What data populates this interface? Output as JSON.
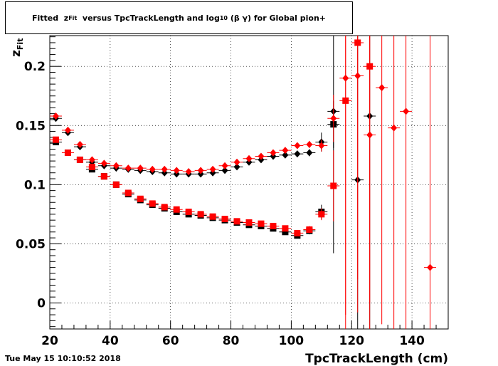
{
  "title": {
    "prefix": "Fitted  z",
    "prefix_sub": "Fit",
    "middle": "  versus TpcTrackLength and log",
    "middle_sub": "10",
    "suffix": " (β γ) for Global pion+"
  },
  "timestamp": "Tue May 15 10:10:52 2018",
  "chart_data": {
    "type": "scatter",
    "xlabel": "TpcTrackLength (cm)",
    "ylabel": "z",
    "ylabel_sub": "Fit",
    "xlim": [
      20,
      152
    ],
    "ylim": [
      -0.022,
      0.226
    ],
    "x_ticks": [
      20,
      40,
      60,
      80,
      100,
      120,
      140
    ],
    "y_ticks": [
      0,
      0.05,
      0.1,
      0.15,
      0.2
    ],
    "y_tick_labels": [
      "0",
      "0.05",
      "0.1",
      "0.15",
      "0.2"
    ],
    "grid": true,
    "colors": {
      "black": "#000000",
      "red": "#ff0000"
    },
    "series": [
      {
        "marker": "diamond",
        "color": "#000000",
        "points": [
          [
            22,
            0.156
          ],
          [
            26,
            0.144
          ],
          [
            30,
            0.132
          ],
          [
            34,
            0.119
          ],
          [
            38,
            0.116
          ],
          [
            42,
            0.114
          ],
          [
            46,
            0.113
          ],
          [
            50,
            0.112
          ],
          [
            54,
            0.111
          ],
          [
            58,
            0.11
          ],
          [
            62,
            0.109
          ],
          [
            66,
            0.109
          ],
          [
            70,
            0.109
          ],
          [
            74,
            0.11
          ],
          [
            78,
            0.112
          ],
          [
            82,
            0.115
          ],
          [
            86,
            0.119
          ],
          [
            90,
            0.121
          ],
          [
            94,
            0.124
          ],
          [
            98,
            0.125
          ],
          [
            102,
            0.126
          ],
          [
            106,
            0.127
          ],
          [
            110,
            0.136
          ],
          [
            114,
            0.162
          ],
          [
            122,
            0.104
          ],
          [
            126,
            0.158
          ]
        ],
        "yerr": [
          0.002,
          0.002,
          0.002,
          0.002,
          0.002,
          0.002,
          0.002,
          0.002,
          0.002,
          0.002,
          0.002,
          0.002,
          0.002,
          0.002,
          0.002,
          0.002,
          0.002,
          0.002,
          0.002,
          0.002,
          0.002,
          0.003,
          0.008,
          0.12,
          0.2,
          0.2
        ]
      },
      {
        "marker": "square",
        "color": "#000000",
        "points": [
          [
            22,
            0.136
          ],
          [
            26,
            0.127
          ],
          [
            30,
            0.121
          ],
          [
            34,
            0.113
          ],
          [
            38,
            0.107
          ],
          [
            42,
            0.1
          ],
          [
            46,
            0.092
          ],
          [
            50,
            0.087
          ],
          [
            54,
            0.083
          ],
          [
            58,
            0.08
          ],
          [
            62,
            0.077
          ],
          [
            66,
            0.075
          ],
          [
            70,
            0.074
          ],
          [
            74,
            0.072
          ],
          [
            78,
            0.07
          ],
          [
            82,
            0.068
          ],
          [
            86,
            0.066
          ],
          [
            90,
            0.065
          ],
          [
            94,
            0.063
          ],
          [
            98,
            0.06
          ],
          [
            102,
            0.057
          ],
          [
            106,
            0.061
          ],
          [
            110,
            0.077
          ],
          [
            114,
            0.151
          ]
        ],
        "yerr": [
          0.002,
          0.002,
          0.002,
          0.002,
          0.002,
          0.002,
          0.002,
          0.002,
          0.002,
          0.002,
          0.002,
          0.002,
          0.002,
          0.002,
          0.002,
          0.002,
          0.002,
          0.002,
          0.002,
          0.002,
          0.002,
          0.003,
          0.006,
          0.02
        ]
      },
      {
        "marker": "diamond",
        "color": "#ff0000",
        "points": [
          [
            22,
            0.158
          ],
          [
            26,
            0.146
          ],
          [
            30,
            0.134
          ],
          [
            34,
            0.121
          ],
          [
            38,
            0.118
          ],
          [
            42,
            0.116
          ],
          [
            46,
            0.114
          ],
          [
            50,
            0.114
          ],
          [
            54,
            0.113
          ],
          [
            58,
            0.113
          ],
          [
            62,
            0.112
          ],
          [
            66,
            0.111
          ],
          [
            70,
            0.112
          ],
          [
            74,
            0.113
          ],
          [
            78,
            0.116
          ],
          [
            82,
            0.119
          ],
          [
            86,
            0.122
          ],
          [
            90,
            0.124
          ],
          [
            94,
            0.127
          ],
          [
            98,
            0.129
          ],
          [
            102,
            0.133
          ],
          [
            106,
            0.134
          ],
          [
            110,
            0.133
          ],
          [
            114,
            0.156
          ],
          [
            118,
            0.19
          ],
          [
            122,
            0.192
          ],
          [
            126,
            0.142
          ],
          [
            130,
            0.182
          ],
          [
            134,
            0.148
          ],
          [
            138,
            0.162
          ],
          [
            146,
            0.03
          ]
        ],
        "yerr": [
          0.002,
          0.002,
          0.002,
          0.002,
          0.002,
          0.002,
          0.002,
          0.002,
          0.002,
          0.002,
          0.002,
          0.002,
          0.002,
          0.002,
          0.002,
          0.002,
          0.002,
          0.002,
          0.002,
          0.002,
          0.002,
          0.003,
          0.005,
          0.02,
          0.2,
          0.2,
          0.2,
          0.2,
          0.2,
          0.2,
          0.2
        ]
      },
      {
        "marker": "square",
        "color": "#ff0000",
        "points": [
          [
            22,
            0.138
          ],
          [
            26,
            0.127
          ],
          [
            30,
            0.121
          ],
          [
            34,
            0.115
          ],
          [
            38,
            0.107
          ],
          [
            42,
            0.1
          ],
          [
            46,
            0.093
          ],
          [
            50,
            0.088
          ],
          [
            54,
            0.084
          ],
          [
            58,
            0.081
          ],
          [
            62,
            0.079
          ],
          [
            66,
            0.077
          ],
          [
            70,
            0.075
          ],
          [
            74,
            0.073
          ],
          [
            78,
            0.071
          ],
          [
            82,
            0.069
          ],
          [
            86,
            0.068
          ],
          [
            90,
            0.067
          ],
          [
            94,
            0.065
          ],
          [
            98,
            0.063
          ],
          [
            102,
            0.059
          ],
          [
            106,
            0.062
          ],
          [
            110,
            0.075
          ],
          [
            114,
            0.099
          ],
          [
            118,
            0.171
          ],
          [
            122,
            0.22
          ],
          [
            126,
            0.2
          ]
        ],
        "yerr": [
          0.002,
          0.002,
          0.002,
          0.002,
          0.002,
          0.002,
          0.002,
          0.002,
          0.002,
          0.002,
          0.002,
          0.002,
          0.002,
          0.002,
          0.002,
          0.002,
          0.002,
          0.002,
          0.002,
          0.002,
          0.002,
          0.003,
          0.005,
          0.03,
          0.2,
          0.2,
          0.2
        ]
      }
    ]
  }
}
